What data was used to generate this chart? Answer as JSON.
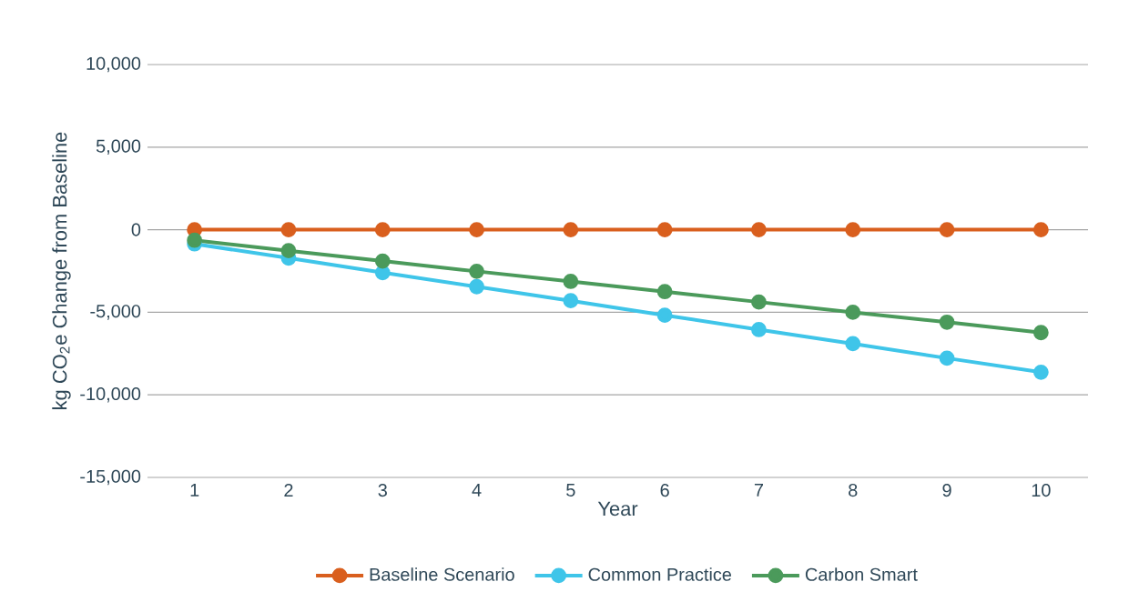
{
  "chart_data": {
    "type": "line",
    "xlabel": "Year",
    "ylabel": "kg CO$_{2}$e Change from Baseline",
    "categories": [
      "1",
      "2",
      "3",
      "4",
      "5",
      "6",
      "7",
      "8",
      "9",
      "10"
    ],
    "series": [
      {
        "name": "Baseline Scenario",
        "color": "#d95f1e",
        "values": [
          0,
          0,
          0,
          0,
          0,
          0,
          0,
          0,
          0,
          0
        ]
      },
      {
        "name": "Common Practice",
        "color": "#3fc5e9",
        "values": [
          -860,
          -1720,
          -2600,
          -3450,
          -4300,
          -5180,
          -6050,
          -6900,
          -7780,
          -8630
        ]
      },
      {
        "name": "Carbon Smart",
        "color": "#4b9a5b",
        "values": [
          -640,
          -1270,
          -1900,
          -2520,
          -3130,
          -3750,
          -4380,
          -5000,
          -5600,
          -6230
        ]
      }
    ],
    "ylim": [
      -15000,
      10000
    ],
    "yticks": [
      {
        "value": -15000,
        "label": "-15,000"
      },
      {
        "value": -10000,
        "label": "-10,000"
      },
      {
        "value": -5000,
        "label": "-5,000"
      },
      {
        "value": 0,
        "label": "0"
      },
      {
        "value": 5000,
        "label": "5,000"
      },
      {
        "value": 10000,
        "label": "10,000"
      }
    ],
    "grid": "y",
    "legend": "bottom",
    "marker": "circle",
    "line_style": "solid"
  }
}
